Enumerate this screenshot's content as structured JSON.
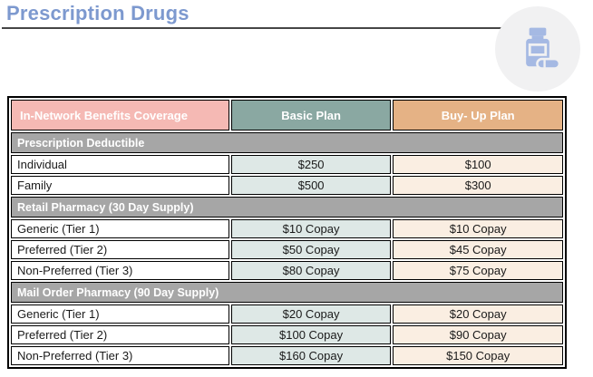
{
  "page": {
    "title": "Prescription Drugs"
  },
  "icon": {
    "name": "pill-bottle-icon"
  },
  "colors": {
    "title_blue": "#7d99cf",
    "header_pink": "#f5b9b4",
    "header_sage": "#8aa8a2",
    "header_tan": "#e5b285",
    "section_gray": "#a6a6a6",
    "cell_sage": "#dee8e6",
    "cell_cream": "#faeee2",
    "icon_blue": "#a5b9e3",
    "icon_circle_gray": "#f1f1f2"
  },
  "table": {
    "columns": [
      "In-Network Benefits Coverage",
      "Basic Plan",
      "Buy- Up Plan"
    ],
    "sections": [
      {
        "header": "Prescription Deductible",
        "rows": [
          {
            "label": "Individual",
            "basic": "$250",
            "buyup": "$100"
          },
          {
            "label": "Family",
            "basic": "$500",
            "buyup": "$300"
          }
        ]
      },
      {
        "header": "Retail Pharmacy (30 Day Supply)",
        "rows": [
          {
            "label": "Generic (Tier 1)",
            "basic": "$10 Copay",
            "buyup": "$10 Copay"
          },
          {
            "label": "Preferred (Tier 2)",
            "basic": "$50 Copay",
            "buyup": "$45 Copay"
          },
          {
            "label": "Non-Preferred (Tier 3)",
            "basic": "$80 Copay",
            "buyup": "$75 Copay"
          }
        ]
      },
      {
        "header": "Mail Order Pharmacy (90 Day Supply)",
        "rows": [
          {
            "label": "Generic (Tier 1)",
            "basic": "$20 Copay",
            "buyup": "$20 Copay"
          },
          {
            "label": "Preferred (Tier 2)",
            "basic": "$100 Copay",
            "buyup": "$90 Copay"
          },
          {
            "label": "Non-Preferred (Tier 3)",
            "basic": "$160 Copay",
            "buyup": "$150 Copay"
          }
        ]
      }
    ]
  }
}
